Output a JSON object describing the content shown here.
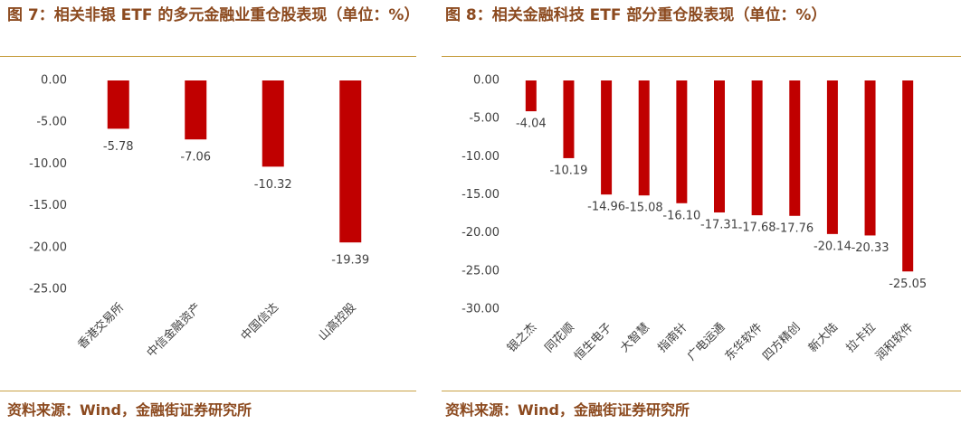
{
  "chart_data": [
    {
      "type": "bar",
      "title": "图 7：相关非银 ETF 的多元金融业重仓股表现（单位：%）",
      "categories": [
        "香港交易所",
        "中信金融资产",
        "中国信达",
        "山高控股"
      ],
      "values": [
        -5.78,
        -7.06,
        -10.32,
        -19.39
      ],
      "value_labels": [
        "-5.78",
        "-7.06",
        "-10.32",
        "-19.39"
      ],
      "color": "#c00000",
      "ylim": [
        -25,
        0
      ],
      "yticks": [
        {
          "value": 0,
          "label": "0.00"
        },
        {
          "value": -5,
          "label": "-5.00"
        },
        {
          "value": -10,
          "label": "-10.00"
        },
        {
          "value": -15,
          "label": "-15.00"
        },
        {
          "value": -20,
          "label": "-20.00"
        },
        {
          "value": -25,
          "label": "-25.00"
        }
      ],
      "grid": false,
      "source": "资料来源：Wind，金融街证券研究所"
    },
    {
      "type": "bar",
      "title": "图 8：相关金融科技 ETF 部分重仓股表现（单位：%）",
      "categories": [
        "银之杰",
        "同花顺",
        "恒生电子",
        "大智慧",
        "指南针",
        "广电运通",
        "东华软件",
        "四方精创",
        "新大陆",
        "拉卡拉",
        "润和软件"
      ],
      "values": [
        -4.04,
        -10.19,
        -14.96,
        -15.08,
        -16.1,
        -17.31,
        -17.68,
        -17.76,
        -20.14,
        -20.33,
        -25.05
      ],
      "value_labels": [
        "-4.04",
        "-10.19",
        "-14.96",
        "-15.08",
        "-16.10",
        "-17.31",
        "-17.68",
        "-17.76",
        "-20.14",
        "-20.33",
        "-25.05"
      ],
      "color": "#c00000",
      "ylim": [
        -30,
        0
      ],
      "yticks": [
        {
          "value": 0,
          "label": "0.00"
        },
        {
          "value": -5,
          "label": "-5.00"
        },
        {
          "value": -10,
          "label": "-10.00"
        },
        {
          "value": -15,
          "label": "-15.00"
        },
        {
          "value": -20,
          "label": "-20.00"
        },
        {
          "value": -25,
          "label": "-25.00"
        },
        {
          "value": -30,
          "label": "-30.00"
        }
      ],
      "grid": false,
      "source": "资料来源：Wind，金融街证券研究所"
    }
  ]
}
